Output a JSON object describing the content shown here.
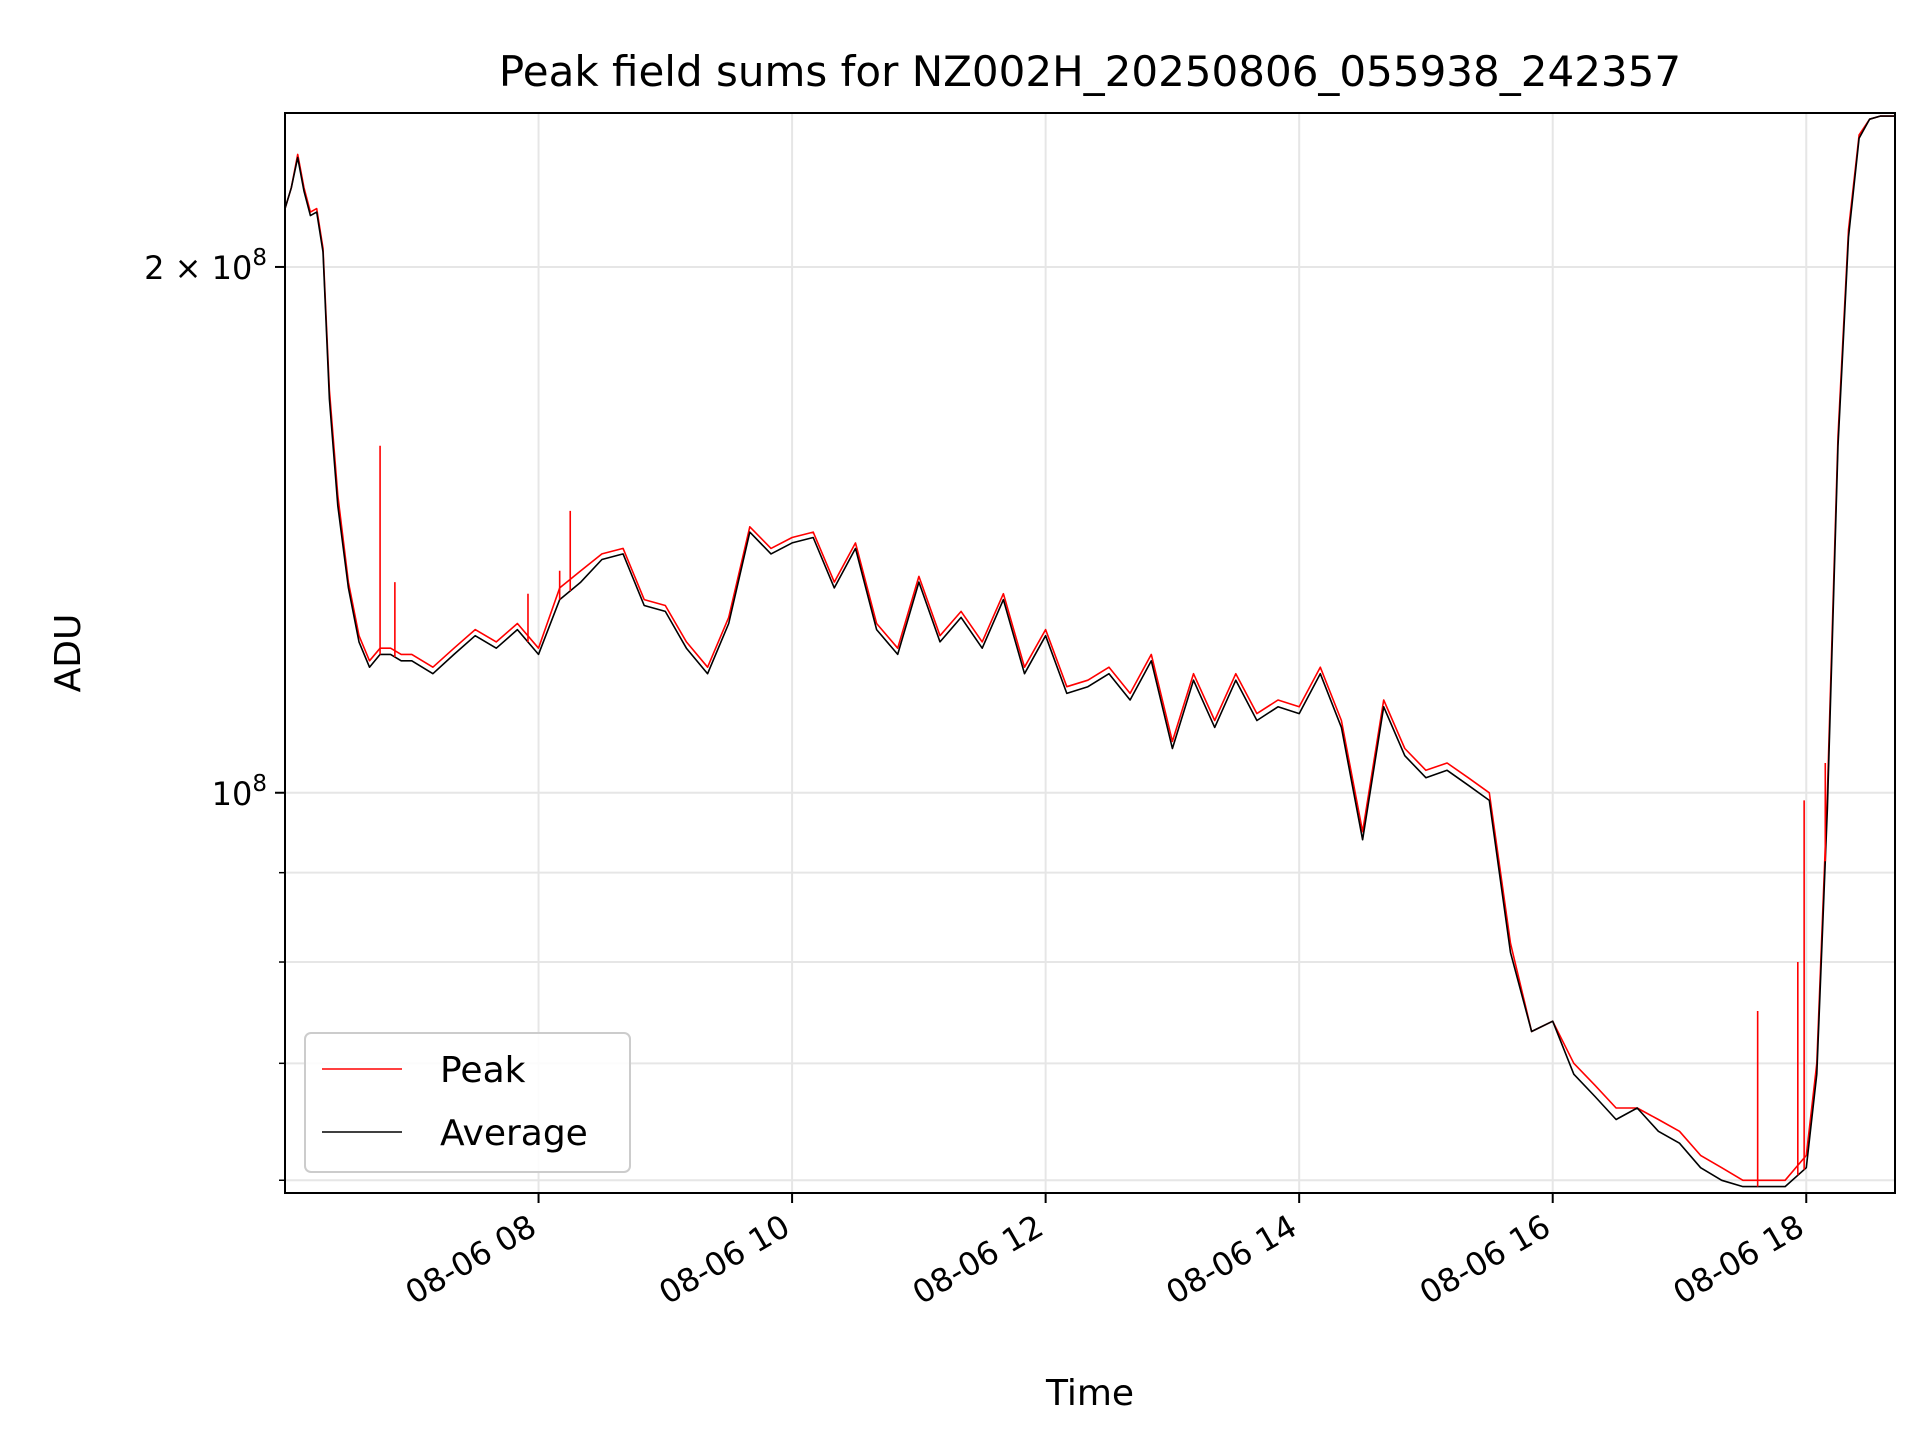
{
  "chart_data": {
    "type": "line",
    "title": "Peak field sums for NZ002H_20250806_055938_242357",
    "xlabel": "Time",
    "ylabel": "ADU",
    "x_axis": {
      "scale": "time",
      "range": [
        "2025-08-06 06:00",
        "2025-08-06 18:42"
      ],
      "ticks": [
        "08-06 08",
        "08-06 10",
        "08-06 12",
        "08-06 14",
        "08-06 16",
        "08-06 18"
      ],
      "tick_times": [
        "2025-08-06 08:00",
        "2025-08-06 10:00",
        "2025-08-06 12:00",
        "2025-08-06 14:00",
        "2025-08-06 16:00",
        "2025-08-06 18:00"
      ]
    },
    "y_axis": {
      "scale": "log",
      "range": [
        59000000,
        245000000
      ],
      "major_ticks": [
        100000000,
        200000000
      ],
      "major_tick_labels": [
        {
          "base": "10",
          "exp": "8"
        },
        {
          "prefix": "2 × ",
          "base": "10",
          "exp": "8"
        }
      ],
      "minor_ticks": [
        60000000,
        70000000,
        80000000,
        90000000
      ]
    },
    "grid": true,
    "legend": {
      "position": "lower-left",
      "entries": [
        "Peak",
        "Average"
      ]
    },
    "x": [
      "2025-08-06 06:00",
      "2025-08-06 06:03",
      "2025-08-06 06:06",
      "2025-08-06 06:09",
      "2025-08-06 06:12",
      "2025-08-06 06:15",
      "2025-08-06 06:18",
      "2025-08-06 06:21",
      "2025-08-06 06:25",
      "2025-08-06 06:30",
      "2025-08-06 06:35",
      "2025-08-06 06:40",
      "2025-08-06 06:45",
      "2025-08-06 06:50",
      "2025-08-06 06:55",
      "2025-08-06 07:00",
      "2025-08-06 07:10",
      "2025-08-06 07:20",
      "2025-08-06 07:30",
      "2025-08-06 07:40",
      "2025-08-06 07:50",
      "2025-08-06 08:00",
      "2025-08-06 08:10",
      "2025-08-06 08:20",
      "2025-08-06 08:30",
      "2025-08-06 08:40",
      "2025-08-06 08:50",
      "2025-08-06 09:00",
      "2025-08-06 09:10",
      "2025-08-06 09:20",
      "2025-08-06 09:30",
      "2025-08-06 09:40",
      "2025-08-06 09:50",
      "2025-08-06 10:00",
      "2025-08-06 10:10",
      "2025-08-06 10:20",
      "2025-08-06 10:30",
      "2025-08-06 10:40",
      "2025-08-06 10:50",
      "2025-08-06 11:00",
      "2025-08-06 11:10",
      "2025-08-06 11:20",
      "2025-08-06 11:30",
      "2025-08-06 11:40",
      "2025-08-06 11:50",
      "2025-08-06 12:00",
      "2025-08-06 12:10",
      "2025-08-06 12:20",
      "2025-08-06 12:30",
      "2025-08-06 12:40",
      "2025-08-06 12:50",
      "2025-08-06 13:00",
      "2025-08-06 13:10",
      "2025-08-06 13:20",
      "2025-08-06 13:30",
      "2025-08-06 13:40",
      "2025-08-06 13:50",
      "2025-08-06 14:00",
      "2025-08-06 14:10",
      "2025-08-06 14:20",
      "2025-08-06 14:30",
      "2025-08-06 14:40",
      "2025-08-06 14:50",
      "2025-08-06 15:00",
      "2025-08-06 15:10",
      "2025-08-06 15:20",
      "2025-08-06 15:30",
      "2025-08-06 15:40",
      "2025-08-06 15:50",
      "2025-08-06 16:00",
      "2025-08-06 16:10",
      "2025-08-06 16:20",
      "2025-08-06 16:30",
      "2025-08-06 16:40",
      "2025-08-06 16:50",
      "2025-08-06 17:00",
      "2025-08-06 17:10",
      "2025-08-06 17:20",
      "2025-08-06 17:30",
      "2025-08-06 17:40",
      "2025-08-06 17:50",
      "2025-08-06 18:00",
      "2025-08-06 18:05",
      "2025-08-06 18:10",
      "2025-08-06 18:15",
      "2025-08-06 18:20",
      "2025-08-06 18:25",
      "2025-08-06 18:30",
      "2025-08-06 18:35",
      "2025-08-06 18:40",
      "2025-08-06 18:42"
    ],
    "series": [
      {
        "name": "Peak",
        "color": "#ff0000",
        "values": [
          216000000,
          222000000,
          232000000,
          222000000,
          215000000,
          216000000,
          205000000,
          170000000,
          148000000,
          132000000,
          123000000,
          119000000,
          121000000,
          121000000,
          120000000,
          120000000,
          118000000,
          121000000,
          124000000,
          122000000,
          125000000,
          121000000,
          131000000,
          134000000,
          137000000,
          138000000,
          129000000,
          128000000,
          122000000,
          118000000,
          126000000,
          142000000,
          138000000,
          140000000,
          141000000,
          132000000,
          139000000,
          125000000,
          121000000,
          133000000,
          123000000,
          127000000,
          122000000,
          130000000,
          118000000,
          124000000,
          115000000,
          116000000,
          118000000,
          114000000,
          120000000,
          107000000,
          117000000,
          110000000,
          117000000,
          111000000,
          113000000,
          112000000,
          118000000,
          110000000,
          95000000,
          113000000,
          106000000,
          103000000,
          104000000,
          102000000,
          100000000,
          82000000,
          73000000,
          74000000,
          70000000,
          68000000,
          66000000,
          66000000,
          65000000,
          64000000,
          62000000,
          61000000,
          60000000,
          60000000,
          60000000,
          62000000,
          70000000,
          100000000,
          160000000,
          210000000,
          238000000,
          243000000,
          244000000,
          244000000,
          244000000
        ]
      },
      {
        "name": "Average",
        "color": "#000000",
        "values": [
          216000000,
          222000000,
          231000000,
          221000000,
          214000000,
          215000000,
          204000000,
          168000000,
          146000000,
          131000000,
          122000000,
          118000000,
          120000000,
          120000000,
          119000000,
          119000000,
          117000000,
          120000000,
          123000000,
          121000000,
          124000000,
          120000000,
          129000000,
          132000000,
          136000000,
          137000000,
          128000000,
          127000000,
          121000000,
          117000000,
          125000000,
          141000000,
          137000000,
          139000000,
          140000000,
          131000000,
          138000000,
          124000000,
          120000000,
          132000000,
          122000000,
          126000000,
          121000000,
          129000000,
          117000000,
          123000000,
          114000000,
          115000000,
          117000000,
          113000000,
          119000000,
          106000000,
          116000000,
          109000000,
          116000000,
          110000000,
          112000000,
          111000000,
          117000000,
          109000000,
          94000000,
          112000000,
          105000000,
          102000000,
          103000000,
          101000000,
          99000000,
          81000000,
          73000000,
          74000000,
          69000000,
          67000000,
          65000000,
          66000000,
          64000000,
          63000000,
          61000000,
          60000000,
          59500000,
          59500000,
          59500000,
          61000000,
          69000000,
          98000000,
          158000000,
          208000000,
          237000000,
          243000000,
          244000000,
          244000000,
          244000000
        ]
      }
    ],
    "spikes": [
      {
        "x": "2025-08-06 06:45",
        "y": 158000000
      },
      {
        "x": "2025-08-06 06:52",
        "y": 132000000
      },
      {
        "x": "2025-08-06 07:55",
        "y": 130000000
      },
      {
        "x": "2025-08-06 08:10",
        "y": 134000000
      },
      {
        "x": "2025-08-06 08:15",
        "y": 145000000
      },
      {
        "x": "2025-08-06 17:37",
        "y": 75000000
      },
      {
        "x": "2025-08-06 17:56",
        "y": 80000000
      },
      {
        "x": "2025-08-06 17:59",
        "y": 99000000
      },
      {
        "x": "2025-08-06 18:09",
        "y": 104000000
      }
    ]
  }
}
